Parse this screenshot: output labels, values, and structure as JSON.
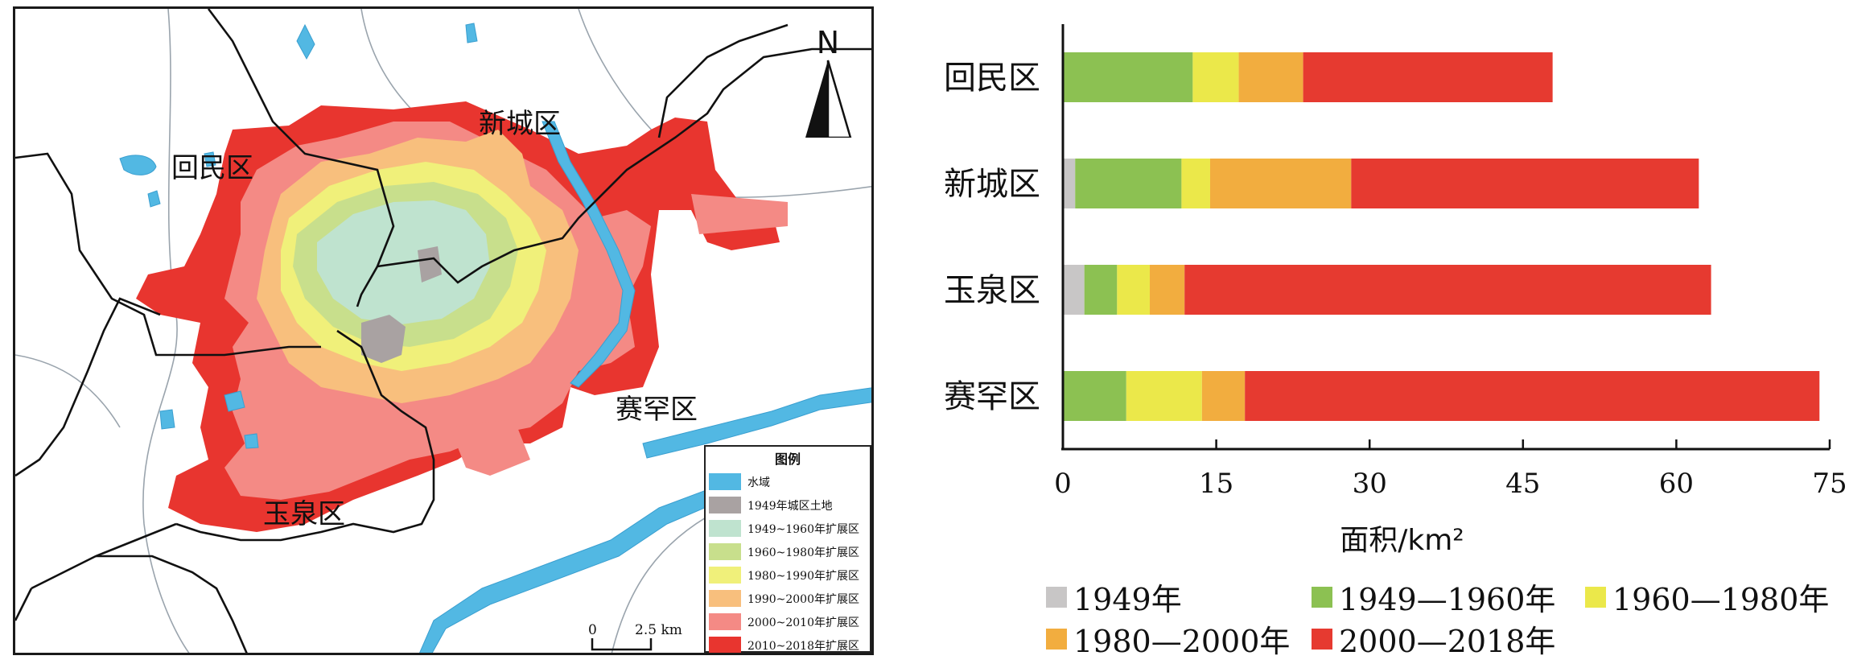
{
  "map": {
    "districts": [
      {
        "key": "huimin",
        "label": "回民区"
      },
      {
        "key": "xincheng",
        "label": "新城区"
      },
      {
        "key": "saihan",
        "label": "赛罕区"
      },
      {
        "key": "yuquan",
        "label": "玉泉区"
      }
    ],
    "north_label": "N",
    "scale": {
      "zero": "0",
      "distance": "2.5 km"
    },
    "legend": {
      "title": "图例",
      "items": [
        {
          "label": "水域",
          "color": "#52b8e3"
        },
        {
          "label": "1949年城区土地",
          "color": "#a9a2a2"
        },
        {
          "label": "1949~1960年扩展区",
          "color": "#bfe3cf"
        },
        {
          "label": "1960~1980年扩展区",
          "color": "#c8df8c"
        },
        {
          "label": "1980~1990年扩展区",
          "color": "#f0f07a"
        },
        {
          "label": "1990~2000年扩展区",
          "color": "#f8bf7d"
        },
        {
          "label": "2000~2010年扩展区",
          "color": "#f48a85"
        },
        {
          "label": "2010~2018年扩展区",
          "color": "#e8352f"
        }
      ]
    }
  },
  "chart_data": {
    "type": "bar",
    "orientation": "horizontal",
    "stacked": true,
    "categories": [
      "回民区",
      "新城区",
      "玉泉区",
      "赛罕区"
    ],
    "series": [
      {
        "name": "1949年",
        "color": "#c8c6c6",
        "values": [
          0,
          1.2,
          2.1,
          0
        ]
      },
      {
        "name": "1949—1960年",
        "color": "#8cc152",
        "values": [
          12.7,
          10.4,
          3.2,
          6.2
        ]
      },
      {
        "name": "1960—1980年",
        "color": "#ebe84a",
        "values": [
          4.5,
          2.8,
          3.2,
          7.4
        ]
      },
      {
        "name": "1980—2000年",
        "color": "#f2ad3f",
        "values": [
          6.3,
          13.8,
          3.4,
          4.2
        ]
      },
      {
        "name": "2000—2018年",
        "color": "#e63a30",
        "values": [
          24.4,
          34.0,
          51.5,
          56.2
        ]
      }
    ],
    "xlabel": "面积/km²",
    "xlim": [
      0,
      75
    ],
    "xticks": [
      0,
      15,
      30,
      45,
      60,
      75
    ],
    "legend_position": "bottom"
  }
}
